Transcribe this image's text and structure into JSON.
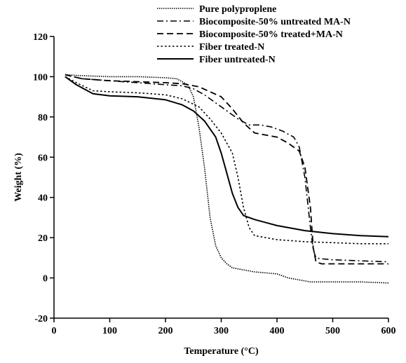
{
  "chart_data": {
    "type": "line",
    "title": "",
    "xlabel": "Temperature (°C)",
    "ylabel": "Weight (%)",
    "xlim": [
      0,
      600
    ],
    "ylim": [
      -20,
      120
    ],
    "xticks": [
      0,
      100,
      200,
      300,
      400,
      500,
      600
    ],
    "yticks": [
      -20,
      0,
      20,
      40,
      60,
      80,
      100,
      120
    ],
    "grid": false,
    "legend_position": "top-right",
    "series": [
      {
        "name": "Pure polyproplene",
        "color": "#000000",
        "dash": "dot-dense",
        "x": [
          20,
          50,
          100,
          150,
          200,
          220,
          240,
          250,
          260,
          270,
          280,
          290,
          300,
          310,
          320,
          340,
          360,
          380,
          400,
          420,
          440,
          460,
          480,
          500,
          550,
          600
        ],
        "y": [
          101,
          100.5,
          100,
          100,
          99.5,
          99,
          96,
          90,
          75,
          55,
          30,
          16,
          10,
          7,
          5,
          4,
          3,
          2.5,
          2,
          0,
          -1,
          -2,
          -2,
          -2,
          -2,
          -2.5
        ]
      },
      {
        "name": "Biocomposite-50% untreated MA-N",
        "color": "#000000",
        "dash": "dash-dot",
        "x": [
          20,
          50,
          100,
          150,
          200,
          230,
          250,
          270,
          290,
          310,
          330,
          350,
          370,
          390,
          410,
          430,
          440,
          450,
          460,
          465,
          470,
          480,
          500,
          550,
          600
        ],
        "y": [
          101,
          99,
          98,
          97,
          96,
          95.5,
          94,
          91,
          87,
          83,
          79,
          76,
          76,
          75,
          73,
          70,
          65,
          50,
          25,
          14,
          10,
          9.5,
          9,
          8.5,
          8
        ]
      },
      {
        "name": "Biocomposite-50% treated+MA-N",
        "color": "#000000",
        "dash": "dashed",
        "x": [
          20,
          50,
          100,
          150,
          200,
          230,
          260,
          280,
          300,
          320,
          340,
          360,
          380,
          400,
          420,
          440,
          450,
          460,
          465,
          470,
          480,
          500,
          550,
          600
        ],
        "y": [
          101,
          99,
          98,
          97.5,
          97,
          96.5,
          95,
          92.5,
          90,
          84,
          77,
          72,
          71,
          70,
          67,
          63,
          55,
          35,
          15,
          8,
          7,
          7,
          7,
          7
        ]
      },
      {
        "name": "Fiber treated-N",
        "color": "#000000",
        "dash": "dotted",
        "x": [
          20,
          40,
          70,
          100,
          150,
          200,
          230,
          260,
          280,
          300,
          320,
          330,
          340,
          350,
          360,
          380,
          400,
          450,
          500,
          550,
          600
        ],
        "y": [
          100,
          97,
          93,
          92.5,
          92,
          91,
          89,
          85,
          79,
          72,
          62,
          50,
          35,
          25,
          21,
          20,
          19,
          18,
          17.5,
          17,
          17
        ]
      },
      {
        "name": "Fiber untreated-N",
        "color": "#000000",
        "dash": "solid",
        "x": [
          20,
          40,
          70,
          100,
          150,
          200,
          230,
          250,
          270,
          290,
          300,
          310,
          320,
          330,
          340,
          360,
          400,
          450,
          500,
          550,
          600
        ],
        "y": [
          100,
          96,
          91.5,
          90.5,
          90,
          88.5,
          86,
          83,
          78,
          70,
          62,
          52,
          42,
          35,
          31,
          29,
          26,
          23.5,
          22,
          21,
          20.5
        ]
      }
    ]
  }
}
